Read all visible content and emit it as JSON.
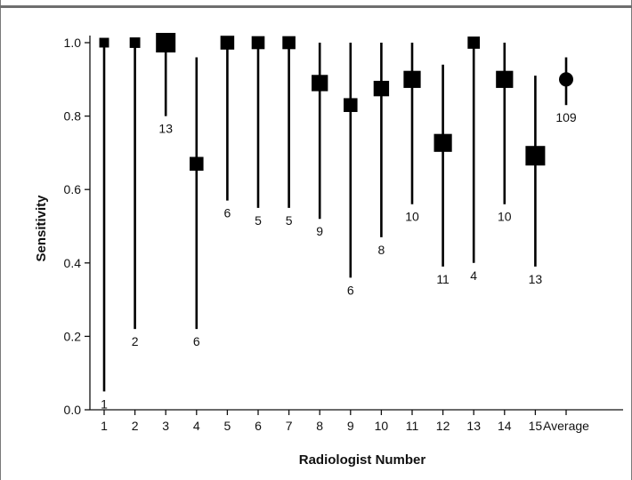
{
  "chart_data": {
    "type": "scatter",
    "xlabel": "Radiologist Number",
    "ylabel": "Sensitivity",
    "ylim": [
      0.0,
      1.0
    ],
    "ytick_labels": [
      "0.0",
      "0.2",
      "0.4",
      "0.6",
      "0.8",
      "1.0"
    ],
    "categories": [
      "1",
      "2",
      "3",
      "4",
      "5",
      "6",
      "7",
      "8",
      "9",
      "10",
      "11",
      "12",
      "13",
      "14",
      "15",
      "Average"
    ],
    "points": [
      {
        "category": "1",
        "value": 1.0,
        "ci_low": 0.05,
        "ci_high": 1.0,
        "n": "1",
        "marker": "square"
      },
      {
        "category": "2",
        "value": 1.0,
        "ci_low": 0.22,
        "ci_high": 1.0,
        "n": "2",
        "marker": "square"
      },
      {
        "category": "3",
        "value": 1.0,
        "ci_low": 0.8,
        "ci_high": 1.0,
        "n": "13",
        "marker": "square"
      },
      {
        "category": "4",
        "value": 0.67,
        "ci_low": 0.22,
        "ci_high": 0.96,
        "n": "6",
        "marker": "square"
      },
      {
        "category": "5",
        "value": 1.0,
        "ci_low": 0.57,
        "ci_high": 1.0,
        "n": "6",
        "marker": "square"
      },
      {
        "category": "6",
        "value": 1.0,
        "ci_low": 0.55,
        "ci_high": 1.0,
        "n": "5",
        "marker": "square"
      },
      {
        "category": "7",
        "value": 1.0,
        "ci_low": 0.55,
        "ci_high": 1.0,
        "n": "5",
        "marker": "square"
      },
      {
        "category": "8",
        "value": 0.89,
        "ci_low": 0.52,
        "ci_high": 1.0,
        "n": "9",
        "marker": "square"
      },
      {
        "category": "9",
        "value": 0.83,
        "ci_low": 0.36,
        "ci_high": 1.0,
        "n": "6",
        "marker": "square"
      },
      {
        "category": "10",
        "value": 0.875,
        "ci_low": 0.47,
        "ci_high": 1.0,
        "n": "8",
        "marker": "square"
      },
      {
        "category": "11",
        "value": 0.9,
        "ci_low": 0.56,
        "ci_high": 1.0,
        "n": "10",
        "marker": "square"
      },
      {
        "category": "12",
        "value": 0.727,
        "ci_low": 0.39,
        "ci_high": 0.94,
        "n": "11",
        "marker": "square"
      },
      {
        "category": "13",
        "value": 1.0,
        "ci_low": 0.4,
        "ci_high": 1.0,
        "n": "4",
        "marker": "square"
      },
      {
        "category": "14",
        "value": 0.9,
        "ci_low": 0.56,
        "ci_high": 1.0,
        "n": "10",
        "marker": "square"
      },
      {
        "category": "15",
        "value": 0.692,
        "ci_low": 0.39,
        "ci_high": 0.91,
        "n": "13",
        "marker": "square"
      },
      {
        "category": "Average",
        "value": 0.9,
        "ci_low": 0.83,
        "ci_high": 0.96,
        "n": "109",
        "marker": "circle"
      }
    ],
    "marker_size_varies_with_n": true,
    "grid": false,
    "legend": "none"
  }
}
